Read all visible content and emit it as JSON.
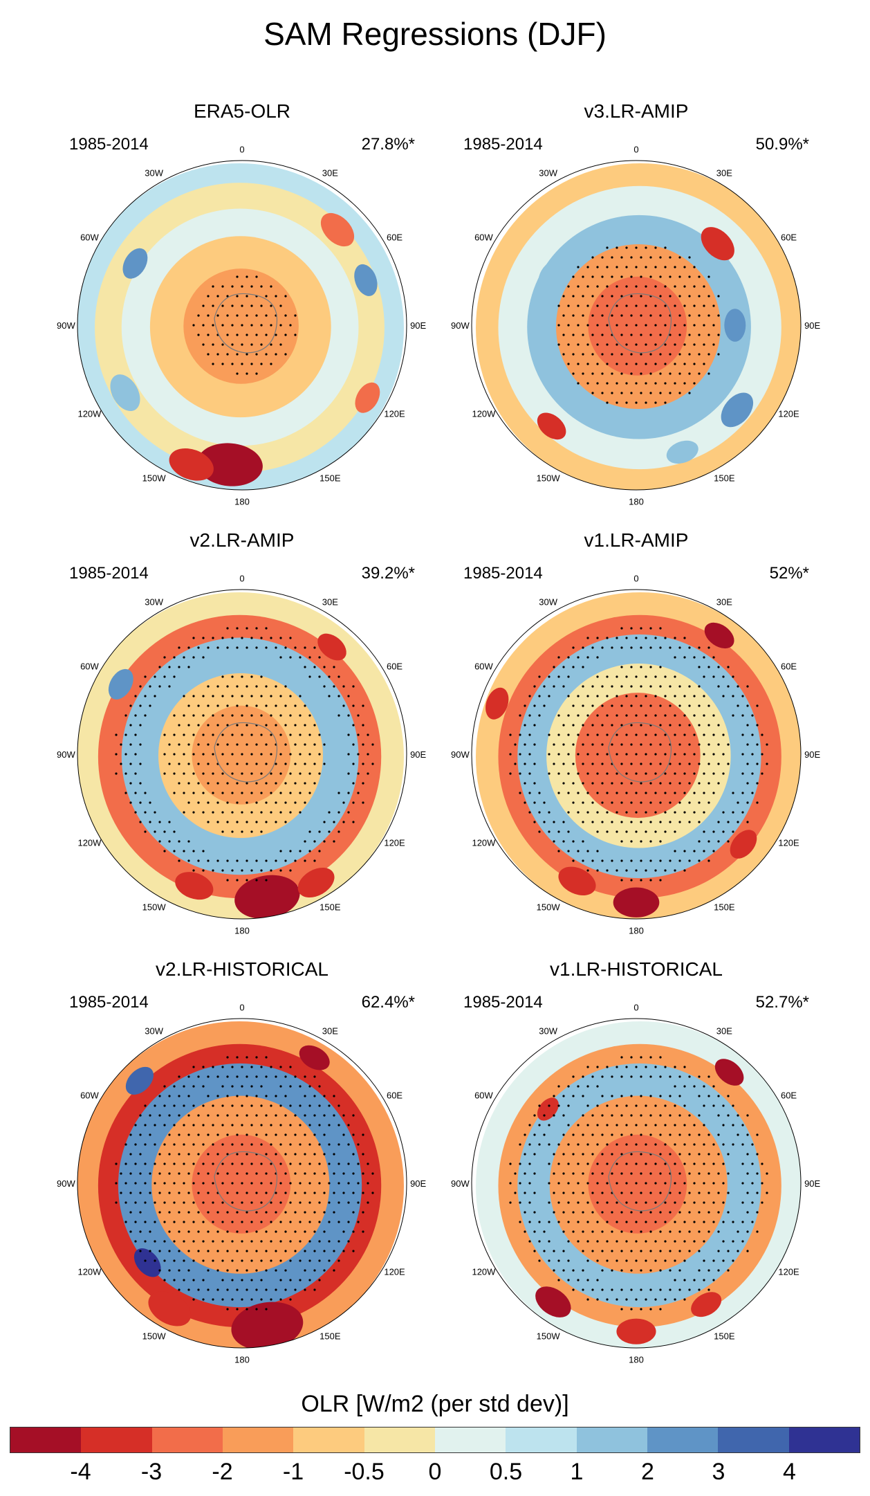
{
  "figure": {
    "title": "SAM Regressions (DJF)",
    "colorbar": {
      "title": "OLR [W/m2 (per std dev)]",
      "colors": [
        "#a50f26",
        "#d62f27",
        "#f26d4a",
        "#f99d59",
        "#fdcb7e",
        "#f6e6a6",
        "#e1f2ee",
        "#bde3ee",
        "#8fc2dd",
        "#5f94c6",
        "#4066ad",
        "#2f3293"
      ],
      "tick_labels": [
        "-4",
        "-3",
        "-2",
        "-1",
        "-0.5",
        "0",
        "0.5",
        "1",
        "2",
        "3",
        "4"
      ]
    },
    "longitude_labels": [
      "0",
      "30E",
      "60E",
      "90E",
      "120E",
      "150E",
      "180",
      "150W",
      "120W",
      "90W",
      "60W",
      "30W"
    ],
    "panels": [
      {
        "name": "ERA5-OLR",
        "period": "1985-2014",
        "variance": "27.8%*"
      },
      {
        "name": "v3.LR-AMIP",
        "period": "1985-2014",
        "variance": "50.9%*"
      },
      {
        "name": "v2.LR-AMIP",
        "period": "1985-2014",
        "variance": "39.2%*"
      },
      {
        "name": "v1.LR-AMIP",
        "period": "1985-2014",
        "variance": "52%*"
      },
      {
        "name": "v2.LR-HISTORICAL",
        "period": "1985-2014",
        "variance": "62.4%*"
      },
      {
        "name": "v1.LR-HISTORICAL",
        "period": "1985-2014",
        "variance": "52.7%*"
      }
    ]
  }
}
